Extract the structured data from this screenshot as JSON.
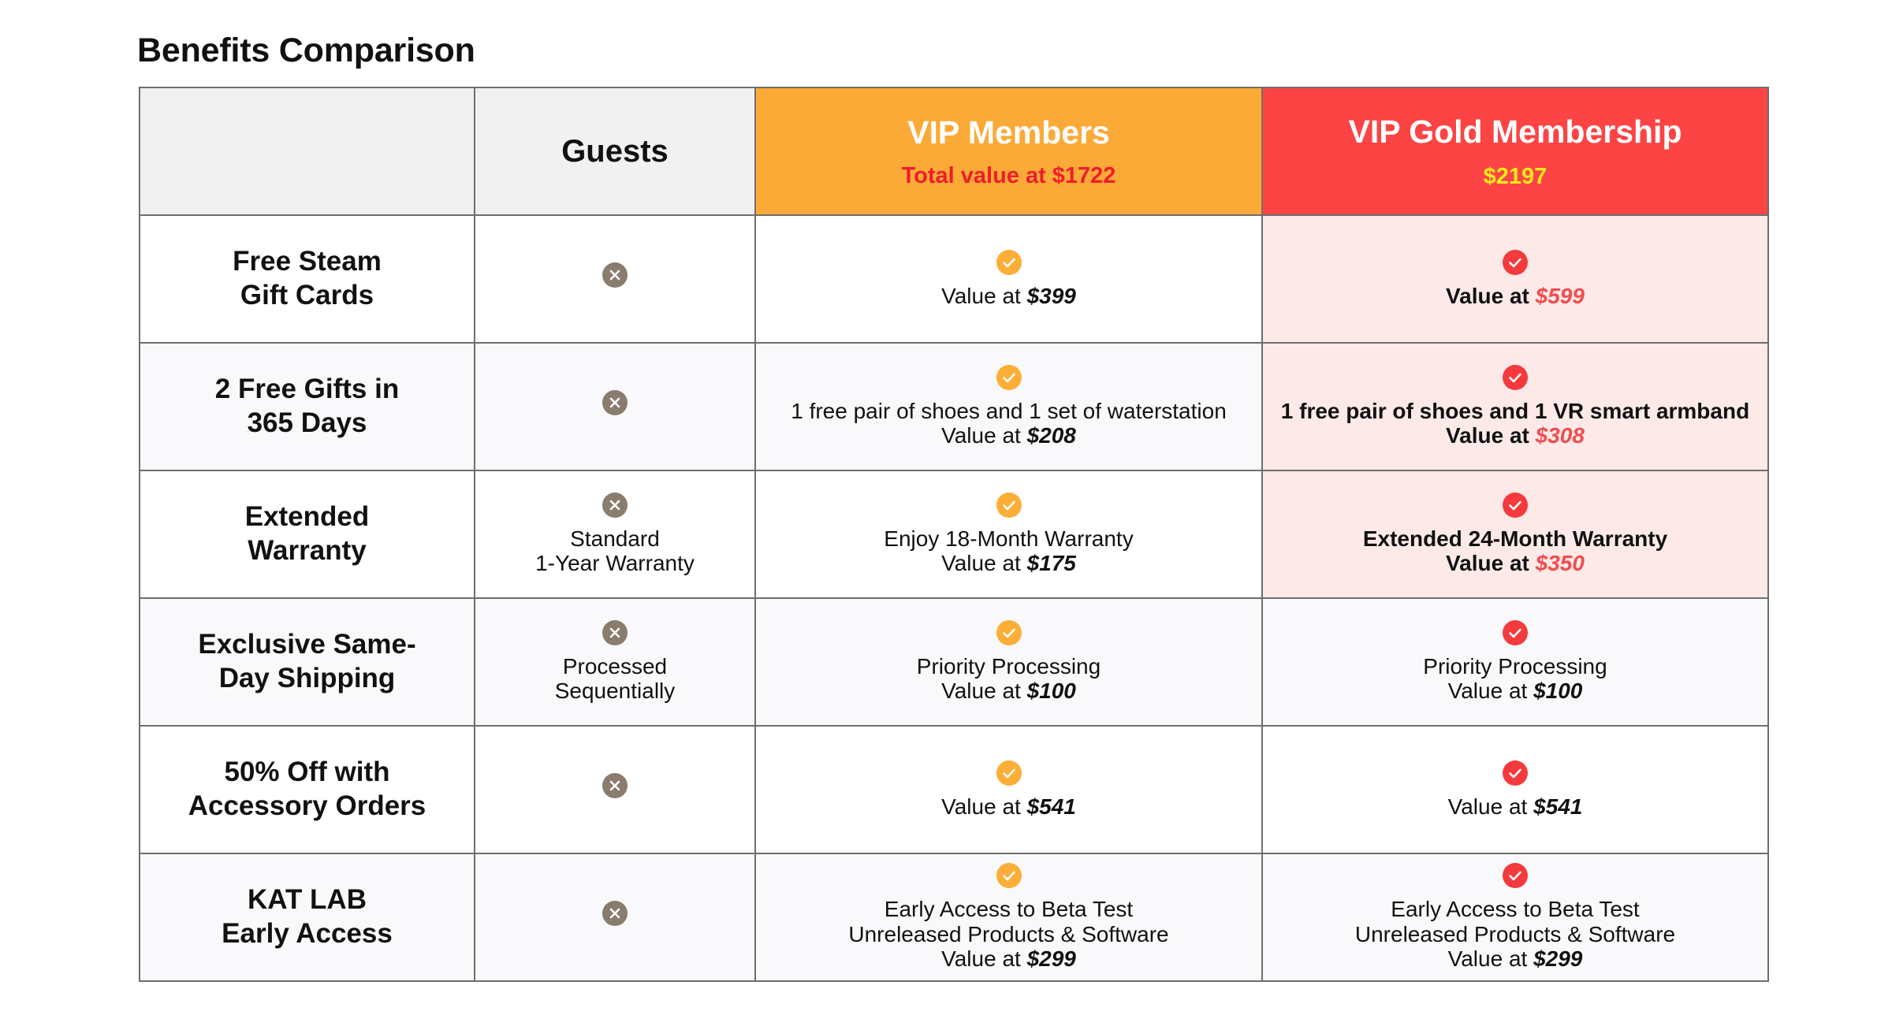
{
  "title": "Benefits Comparison",
  "colors": {
    "vip": "#fcaa37",
    "gold": "#fc4444",
    "gold_sub": "#fbea1a",
    "vip_sub": "#ef1d2a",
    "gold_row_bg": "#fee9e9",
    "x_icon": "#8a7c6e"
  },
  "columns": {
    "guests": "Guests",
    "vip": {
      "name": "VIP Members",
      "sub": "Total value at $1722"
    },
    "gold": {
      "name": "VIP Gold Membership",
      "sub": "$2197"
    }
  },
  "rows": [
    {
      "feature": [
        "Free Steam",
        "Gift Cards"
      ],
      "guests": {
        "icon": "x-circle-icon",
        "lines": []
      },
      "vip": {
        "icon": "check-circle-icon",
        "lines": [],
        "value_prefix": "Value at ",
        "value": "$399"
      },
      "gold": {
        "icon": "check-circle-icon",
        "lines": [],
        "value_prefix": "Value at ",
        "value": "$599"
      }
    },
    {
      "feature": [
        "2 Free Gifts in",
        "365 Days"
      ],
      "guests": {
        "icon": "x-circle-icon",
        "lines": []
      },
      "vip": {
        "icon": "check-circle-icon",
        "lines": [
          "1 free pair of shoes and 1 set of waterstation"
        ],
        "value_prefix": "Value at ",
        "value": "$208"
      },
      "gold": {
        "icon": "check-circle-icon",
        "lines": [
          "1 free pair of shoes and 1 VR smart armband"
        ],
        "value_prefix": "Value at ",
        "value": "$308"
      }
    },
    {
      "feature": [
        "Extended",
        "Warranty"
      ],
      "guests": {
        "icon": "x-circle-icon",
        "lines": [
          "Standard",
          "1-Year Warranty"
        ]
      },
      "vip": {
        "icon": "check-circle-icon",
        "lines": [
          "Enjoy 18-Month Warranty"
        ],
        "value_prefix": "Value at ",
        "value": "$175"
      },
      "gold": {
        "icon": "check-circle-icon",
        "lines": [
          "Extended 24-Month Warranty"
        ],
        "value_prefix": "Value at ",
        "value": "$350"
      }
    },
    {
      "feature": [
        "Exclusive Same-",
        "Day Shipping"
      ],
      "guests": {
        "icon": "x-circle-icon",
        "lines": [
          "Processed",
          "Sequentially"
        ]
      },
      "vip": {
        "icon": "check-circle-icon",
        "lines": [
          "Priority Processing"
        ],
        "value_prefix": "Value at ",
        "value": "$100"
      },
      "gold": {
        "icon": "check-circle-icon",
        "lines": [
          "Priority Processing"
        ],
        "value_prefix": "Value at ",
        "value": "$100"
      }
    },
    {
      "feature": [
        "50% Off with",
        "Accessory Orders"
      ],
      "guests": {
        "icon": "x-circle-icon",
        "lines": []
      },
      "vip": {
        "icon": "check-circle-icon",
        "lines": [],
        "value_prefix": "Value at ",
        "value": "$541"
      },
      "gold": {
        "icon": "check-circle-icon",
        "lines": [],
        "value_prefix": "Value at ",
        "value": "$541"
      }
    },
    {
      "feature": [
        "KAT LAB",
        "Early Access"
      ],
      "guests": {
        "icon": "x-circle-icon",
        "lines": []
      },
      "vip": {
        "icon": "check-circle-icon",
        "lines": [
          "Early Access to Beta Test",
          "Unreleased Products & Software"
        ],
        "value_prefix": "Value at ",
        "value": "$299"
      },
      "gold": {
        "icon": "check-circle-icon",
        "lines": [
          "Early Access to Beta Test",
          "Unreleased Products & Software"
        ],
        "value_prefix": "Value at ",
        "value": "$299"
      }
    }
  ]
}
